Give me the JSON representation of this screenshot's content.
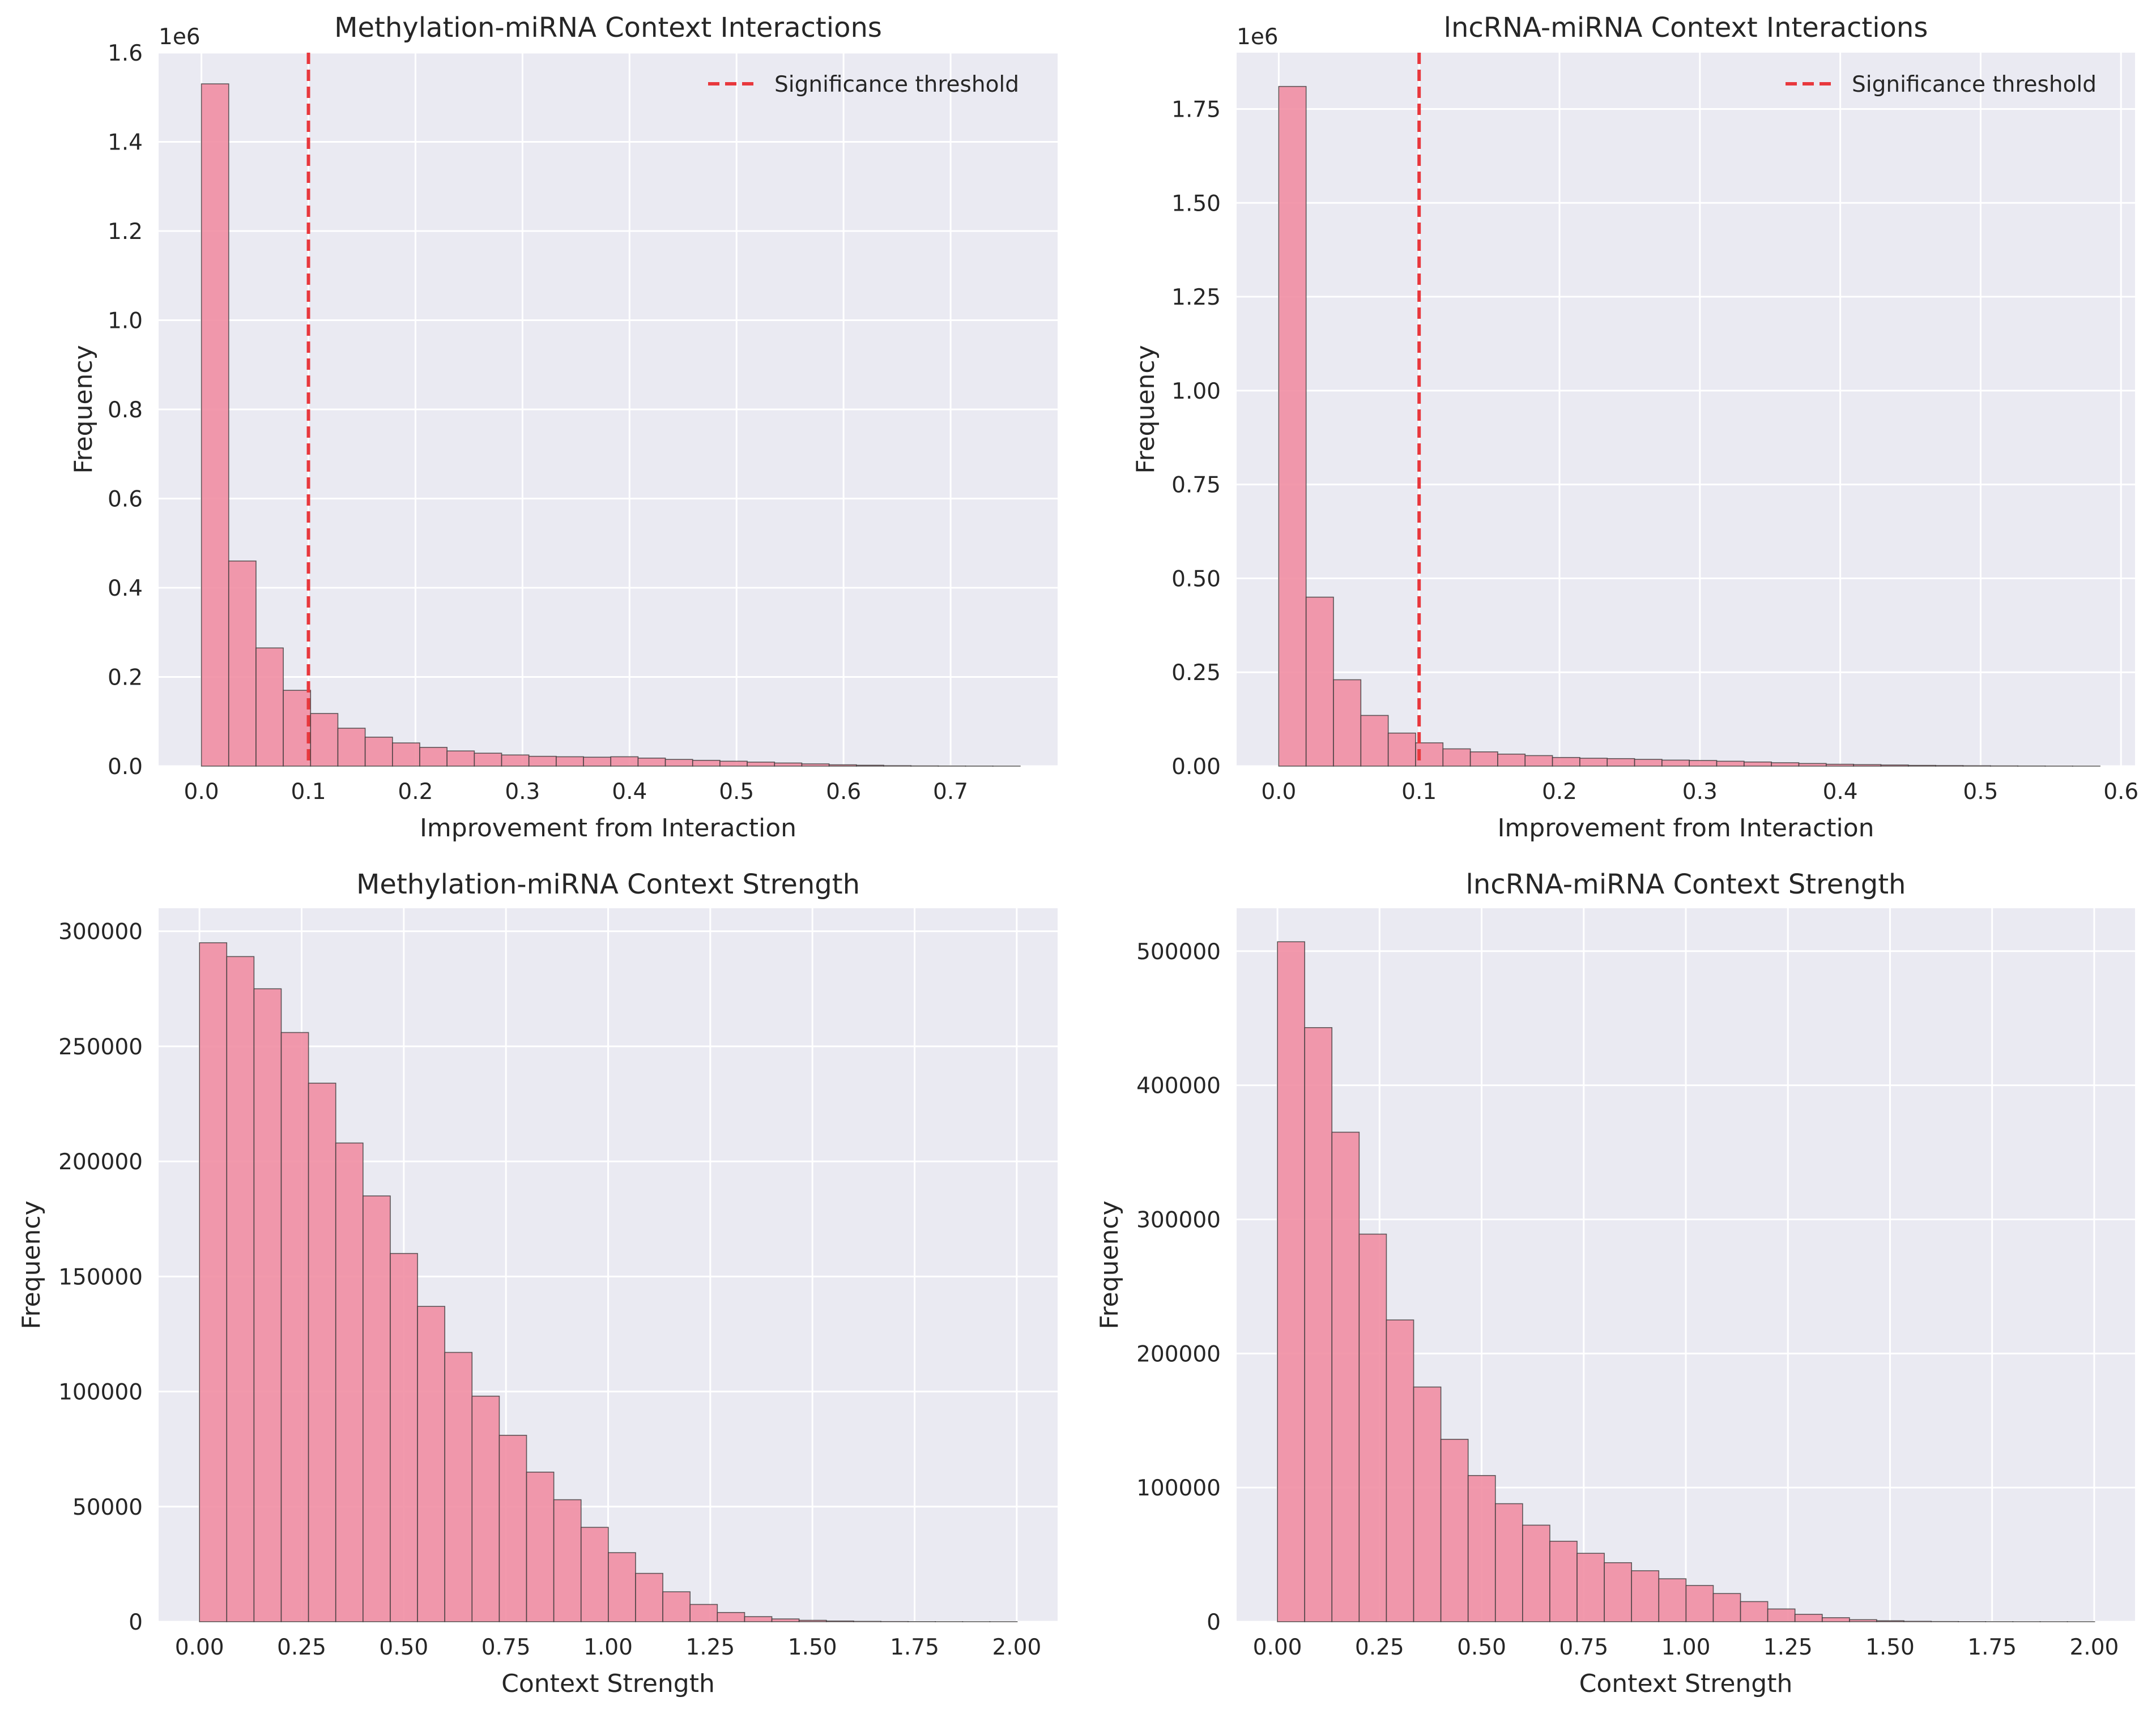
{
  "style": {
    "bar_color": "#f08ba0",
    "bar_edge": "#3a3a3a",
    "axes_bg": "#eaeaf2",
    "grid": "#ffffff",
    "threshold_color": "#e8383d"
  },
  "chart_data": [
    {
      "type": "bar",
      "title": "Methylation-miRNA Context Interactions",
      "xlabel": "Improvement from Interaction",
      "ylabel": "Frequency",
      "y_offset_label": "1e6",
      "xlim": [
        -0.04,
        0.8
      ],
      "ylim": [
        0,
        1.6
      ],
      "x_ticks": [
        0.0,
        0.1,
        0.2,
        0.3,
        0.4,
        0.5,
        0.6,
        0.7
      ],
      "x_tick_labels": [
        "0.0",
        "0.1",
        "0.2",
        "0.3",
        "0.4",
        "0.5",
        "0.6",
        "0.7"
      ],
      "y_ticks": [
        0,
        0.2,
        0.4,
        0.6,
        0.8,
        1.0,
        1.2,
        1.4,
        1.6
      ],
      "y_tick_labels": [
        "0.0",
        "0.2",
        "0.4",
        "0.6",
        "0.8",
        "1.0",
        "1.2",
        "1.4",
        "1.6"
      ],
      "bin_start": 0.0,
      "bin_width": 0.0255,
      "values": [
        1.53,
        0.46,
        0.265,
        0.17,
        0.118,
        0.085,
        0.065,
        0.052,
        0.042,
        0.034,
        0.029,
        0.025,
        0.022,
        0.021,
        0.02,
        0.021,
        0.018,
        0.015,
        0.013,
        0.011,
        0.009,
        0.007,
        0.005,
        0.003,
        0.002,
        0.001,
        0.0005,
        0.0003,
        0.0002,
        0.0001
      ],
      "threshold": 0.1,
      "legend": {
        "label": "Significance threshold",
        "placement": "upper right"
      }
    },
    {
      "type": "bar",
      "title": "lncRNA-miRNA Context Interactions",
      "xlabel": "Improvement from Interaction",
      "ylabel": "Frequency",
      "y_offset_label": "1e6",
      "xlim": [
        -0.03,
        0.61
      ],
      "ylim": [
        0,
        1.9
      ],
      "x_ticks": [
        0.0,
        0.1,
        0.2,
        0.3,
        0.4,
        0.5,
        0.6
      ],
      "x_tick_labels": [
        "0.0",
        "0.1",
        "0.2",
        "0.3",
        "0.4",
        "0.5",
        "0.6"
      ],
      "y_ticks": [
        0,
        0.25,
        0.5,
        0.75,
        1.0,
        1.25,
        1.5,
        1.75
      ],
      "y_tick_labels": [
        "0.00",
        "0.25",
        "0.50",
        "0.75",
        "1.00",
        "1.25",
        "1.50",
        "1.75"
      ],
      "bin_start": 0.0,
      "bin_width": 0.0195,
      "values": [
        1.81,
        0.45,
        0.23,
        0.135,
        0.088,
        0.062,
        0.046,
        0.038,
        0.032,
        0.028,
        0.023,
        0.021,
        0.02,
        0.018,
        0.016,
        0.015,
        0.013,
        0.011,
        0.009,
        0.007,
        0.005,
        0.004,
        0.003,
        0.002,
        0.0015,
        0.001,
        0.0006,
        0.0004,
        0.0002,
        0.0001
      ],
      "threshold": 0.1,
      "legend": {
        "label": "Significance threshold",
        "placement": "upper right"
      }
    },
    {
      "type": "bar",
      "title": "Methylation-miRNA Context Strength",
      "xlabel": "Context Strength",
      "ylabel": "Frequency",
      "y_offset_label": "",
      "xlim": [
        -0.1,
        2.1
      ],
      "ylim": [
        0,
        310000
      ],
      "x_ticks": [
        0,
        0.25,
        0.5,
        0.75,
        1.0,
        1.25,
        1.5,
        1.75,
        2.0
      ],
      "x_tick_labels": [
        "0.00",
        "0.25",
        "0.50",
        "0.75",
        "1.00",
        "1.25",
        "1.50",
        "1.75",
        "2.00"
      ],
      "y_ticks": [
        0,
        50000,
        100000,
        150000,
        200000,
        250000,
        300000
      ],
      "y_tick_labels": [
        "0",
        "50000",
        "100000",
        "150000",
        "200000",
        "250000",
        "300000"
      ],
      "bin_start": 0.0,
      "bin_width": 0.0667,
      "values": [
        295000,
        289000,
        275000,
        256000,
        234000,
        208000,
        185000,
        160000,
        137000,
        117000,
        98000,
        81000,
        65000,
        53000,
        41000,
        30000,
        21000,
        13000,
        7500,
        4000,
        2200,
        1200,
        600,
        300,
        150,
        80,
        40,
        20,
        10,
        5
      ]
    },
    {
      "type": "bar",
      "title": "lncRNA-miRNA Context Strength",
      "xlabel": "Context Strength",
      "ylabel": "Frequency",
      "y_offset_label": "",
      "xlim": [
        -0.1,
        2.1
      ],
      "ylim": [
        0,
        532000
      ],
      "x_ticks": [
        0,
        0.25,
        0.5,
        0.75,
        1.0,
        1.25,
        1.5,
        1.75,
        2.0
      ],
      "x_tick_labels": [
        "0.00",
        "0.25",
        "0.50",
        "0.75",
        "1.00",
        "1.25",
        "1.50",
        "1.75",
        "2.00"
      ],
      "y_ticks": [
        0,
        100000,
        200000,
        300000,
        400000,
        500000
      ],
      "y_tick_labels": [
        "0",
        "100000",
        "200000",
        "300000",
        "400000",
        "500000"
      ],
      "bin_start": 0.0,
      "bin_width": 0.0667,
      "values": [
        507000,
        443000,
        365000,
        289000,
        225000,
        175000,
        136000,
        109000,
        88000,
        72000,
        60000,
        51000,
        44000,
        38000,
        32000,
        27000,
        21000,
        15000,
        9500,
        5500,
        3000,
        1500,
        700,
        300,
        150,
        70,
        30,
        15,
        8,
        4
      ]
    }
  ]
}
